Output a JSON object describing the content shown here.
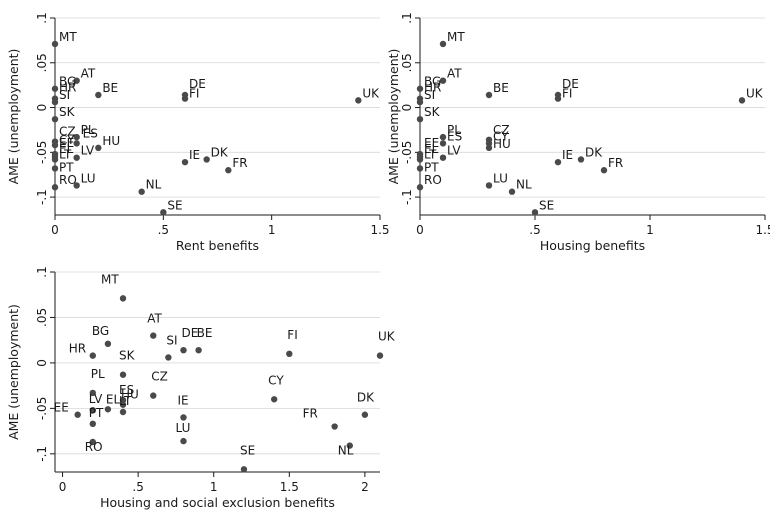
{
  "chart_data": [
    {
      "type": "scatter",
      "title": "",
      "xlabel": "Rent benefits",
      "ylabel": "AME (unemployment)",
      "xlim": [
        0,
        1.5
      ],
      "ylim": [
        -0.12,
        0.1
      ],
      "xticks": [
        0,
        0.5,
        1,
        1.5
      ],
      "xtick_labels": [
        "0",
        ".5",
        "1",
        "1.5"
      ],
      "yticks": [
        -0.1,
        -0.05,
        0,
        0.05,
        0.1
      ],
      "ytick_labels": [
        "-.1",
        "-.05",
        "0",
        ".05",
        ".1"
      ],
      "grid": true,
      "points": [
        {
          "label": "MT",
          "x": 0.0,
          "y": 0.071
        },
        {
          "label": "AT",
          "x": 0.1,
          "y": 0.03
        },
        {
          "label": "BG",
          "x": 0.0,
          "y": 0.021
        },
        {
          "label": "BE",
          "x": 0.2,
          "y": 0.014
        },
        {
          "label": "HR",
          "x": 0.0,
          "y": 0.01
        },
        {
          "label": "SI",
          "x": 0.0,
          "y": 0.006
        },
        {
          "label": "DE",
          "x": 0.6,
          "y": 0.014
        },
        {
          "label": "FI",
          "x": 0.6,
          "y": 0.01
        },
        {
          "label": "UK",
          "x": 1.4,
          "y": 0.008
        },
        {
          "label": "SK",
          "x": 0.0,
          "y": -0.013
        },
        {
          "label": "PL",
          "x": 0.1,
          "y": -0.033
        },
        {
          "label": "CZ",
          "x": 0.0,
          "y": -0.038
        },
        {
          "label": "ES",
          "x": 0.1,
          "y": -0.04
        },
        {
          "label": "HU",
          "x": 0.2,
          "y": -0.045
        },
        {
          "label": "CY",
          "x": 0.0,
          "y": -0.042
        },
        {
          "label": "EE",
          "x": 0.0,
          "y": -0.052
        },
        {
          "label": "EL",
          "x": 0.0,
          "y": -0.055
        },
        {
          "label": "LV",
          "x": 0.1,
          "y": -0.056
        },
        {
          "label": "LT",
          "x": 0.0,
          "y": -0.058
        },
        {
          "label": "PT",
          "x": 0.0,
          "y": -0.068
        },
        {
          "label": "IE",
          "x": 0.6,
          "y": -0.061
        },
        {
          "label": "DK",
          "x": 0.7,
          "y": -0.058
        },
        {
          "label": "FR",
          "x": 0.8,
          "y": -0.07
        },
        {
          "label": "RO",
          "x": 0.0,
          "y": -0.089
        },
        {
          "label": "LU",
          "x": 0.1,
          "y": -0.087
        },
        {
          "label": "NL",
          "x": 0.4,
          "y": -0.094
        },
        {
          "label": "SE",
          "x": 0.5,
          "y": -0.117
        }
      ]
    },
    {
      "type": "scatter",
      "title": "",
      "xlabel": "Housing benefits",
      "ylabel": "AME (unemployment)",
      "xlim": [
        0,
        1.5
      ],
      "ylim": [
        -0.12,
        0.1
      ],
      "xticks": [
        0,
        0.5,
        1,
        1.5
      ],
      "xtick_labels": [
        "0",
        ".5",
        "1",
        "1.5"
      ],
      "yticks": [
        -0.1,
        -0.05,
        0,
        0.05,
        0.1
      ],
      "ytick_labels": [
        "-.1",
        "-.05",
        "0",
        ".05",
        ".1"
      ],
      "grid": true,
      "points": [
        {
          "label": "MT",
          "x": 0.1,
          "y": 0.071
        },
        {
          "label": "AT",
          "x": 0.1,
          "y": 0.03
        },
        {
          "label": "BG",
          "x": 0.0,
          "y": 0.021
        },
        {
          "label": "BE",
          "x": 0.3,
          "y": 0.014
        },
        {
          "label": "HR",
          "x": 0.0,
          "y": 0.01
        },
        {
          "label": "SI",
          "x": 0.0,
          "y": 0.006
        },
        {
          "label": "DE",
          "x": 0.6,
          "y": 0.014
        },
        {
          "label": "FI",
          "x": 0.6,
          "y": 0.01
        },
        {
          "label": "UK",
          "x": 1.4,
          "y": 0.008
        },
        {
          "label": "SK",
          "x": 0.0,
          "y": -0.013
        },
        {
          "label": "PL",
          "x": 0.1,
          "y": -0.033
        },
        {
          "label": "ES",
          "x": 0.1,
          "y": -0.04
        },
        {
          "label": "CZ",
          "x": 0.3,
          "y": -0.036
        },
        {
          "label": "CY",
          "x": 0.3,
          "y": -0.04
        },
        {
          "label": "HU",
          "x": 0.3,
          "y": -0.045
        },
        {
          "label": "EE",
          "x": 0.0,
          "y": -0.052
        },
        {
          "label": "EL",
          "x": 0.0,
          "y": -0.055
        },
        {
          "label": "LV",
          "x": 0.1,
          "y": -0.056
        },
        {
          "label": "LT",
          "x": 0.0,
          "y": -0.058
        },
        {
          "label": "PT",
          "x": 0.0,
          "y": -0.068
        },
        {
          "label": "IE",
          "x": 0.6,
          "y": -0.061
        },
        {
          "label": "DK",
          "x": 0.7,
          "y": -0.058
        },
        {
          "label": "FR",
          "x": 0.8,
          "y": -0.07
        },
        {
          "label": "RO",
          "x": 0.0,
          "y": -0.089
        },
        {
          "label": "LU",
          "x": 0.3,
          "y": -0.087
        },
        {
          "label": "NL",
          "x": 0.4,
          "y": -0.094
        },
        {
          "label": "SE",
          "x": 0.5,
          "y": -0.117
        }
      ]
    },
    {
      "type": "scatter",
      "title": "",
      "xlabel": "Housing and social exclusion benefits",
      "ylabel": "AME (unemployment)",
      "xlim": [
        -0.05,
        2.1
      ],
      "ylim": [
        -0.12,
        0.1
      ],
      "xticks": [
        0,
        0.5,
        1,
        1.5,
        2
      ],
      "xtick_labels": [
        "0",
        ".5",
        "1",
        "1.5",
        "2"
      ],
      "yticks": [
        -0.1,
        -0.05,
        0,
        0.05,
        0.1
      ],
      "ytick_labels": [
        "-.1",
        "-.05",
        "0",
        ".05",
        ".1"
      ],
      "grid": true,
      "points": [
        {
          "label": "MT",
          "x": 0.4,
          "y": 0.071
        },
        {
          "label": "AT",
          "x": 0.6,
          "y": 0.03
        },
        {
          "label": "BG",
          "x": 0.3,
          "y": 0.021
        },
        {
          "label": "HR",
          "x": 0.2,
          "y": 0.008
        },
        {
          "label": "SI",
          "x": 0.7,
          "y": 0.006
        },
        {
          "label": "DE",
          "x": 0.8,
          "y": 0.014
        },
        {
          "label": "BE",
          "x": 0.9,
          "y": 0.014
        },
        {
          "label": "FI",
          "x": 1.5,
          "y": 0.01
        },
        {
          "label": "UK",
          "x": 2.1,
          "y": 0.008
        },
        {
          "label": "SK",
          "x": 0.4,
          "y": -0.013
        },
        {
          "label": "PL",
          "x": 0.2,
          "y": -0.033
        },
        {
          "label": "CZ",
          "x": 0.6,
          "y": -0.036
        },
        {
          "label": "ES",
          "x": 0.4,
          "y": -0.041
        },
        {
          "label": "HU",
          "x": 0.4,
          "y": -0.046
        },
        {
          "label": "EL",
          "x": 0.3,
          "y": -0.051
        },
        {
          "label": "LT",
          "x": 0.4,
          "y": -0.054
        },
        {
          "label": "LV",
          "x": 0.2,
          "y": -0.052
        },
        {
          "label": "EE",
          "x": 0.1,
          "y": -0.057
        },
        {
          "label": "PT",
          "x": 0.2,
          "y": -0.067
        },
        {
          "label": "CY",
          "x": 1.4,
          "y": -0.04
        },
        {
          "label": "IE",
          "x": 0.8,
          "y": -0.06
        },
        {
          "label": "DK",
          "x": 2.0,
          "y": -0.057
        },
        {
          "label": "FR",
          "x": 1.8,
          "y": -0.07
        },
        {
          "label": "NL",
          "x": 1.9,
          "y": -0.091
        },
        {
          "label": "RO",
          "x": 0.2,
          "y": -0.087
        },
        {
          "label": "LU",
          "x": 0.8,
          "y": -0.086
        },
        {
          "label": "SE",
          "x": 1.2,
          "y": -0.117
        }
      ]
    }
  ]
}
